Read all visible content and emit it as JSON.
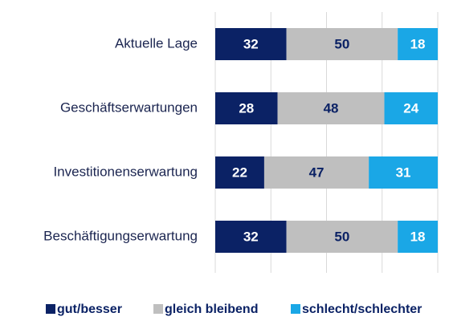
{
  "chart_data": {
    "type": "stacked_bar_horizontal",
    "categories": [
      "Aktuelle Lage",
      "Geschäftserwartungen",
      "Investitionenserwartung",
      "Beschäftigungserwartung"
    ],
    "series": [
      {
        "name": "gut/besser",
        "color": "#0b2265",
        "label_color": "#ffffff",
        "values": [
          32,
          28,
          22,
          32
        ]
      },
      {
        "name": "gleich bleibend",
        "color": "#bfbfbf",
        "label_color": "#0b2265",
        "values": [
          50,
          48,
          47,
          50
        ]
      },
      {
        "name": "schlecht/schlechter",
        "color": "#1aa7e6",
        "label_color": "#ffffff",
        "values": [
          18,
          24,
          31,
          18
        ]
      }
    ],
    "xlim": [
      0,
      100
    ],
    "xticks": [
      0,
      25,
      50,
      75,
      100
    ],
    "grid": true,
    "legend": "bottom"
  }
}
